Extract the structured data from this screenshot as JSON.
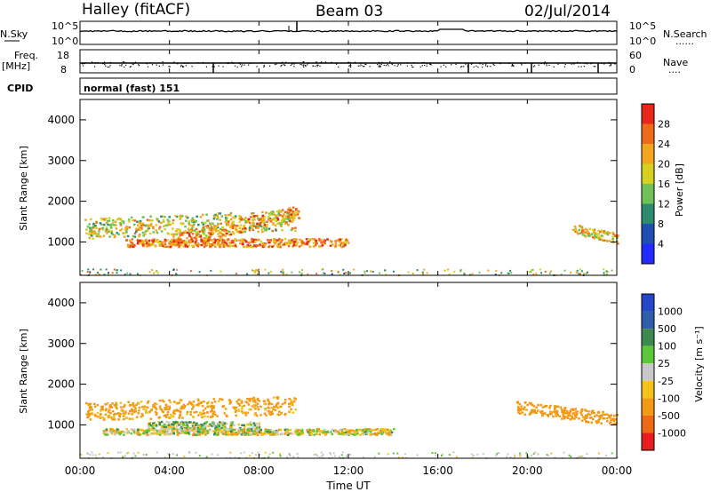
{
  "header": {
    "station": "Halley (fitACF)",
    "beam": "Beam 03",
    "date": "02/Jul/2014"
  },
  "strip_labels": {
    "nsky": "N.Sky",
    "nsearch": "N.Search",
    "freq_line1": "Freq.",
    "freq_line2": "[MHz]",
    "nave": "Nave",
    "cpid": "CPID",
    "mode": "normal (fast) 151",
    "dots": "......",
    "nave_dots": "...."
  },
  "strip_ticks": {
    "noise_left_top": "10^5",
    "noise_left_bottom": "10^0",
    "noise_right_top": "10^5",
    "noise_right_bottom": "10^0",
    "freq_left_top": "18",
    "freq_left_bottom": "8",
    "nave_right_top": "60",
    "nave_right_bottom": "0"
  },
  "axes": {
    "ylabel": "Slant Range [km]",
    "xlabel": "Time UT"
  },
  "colorbars": {
    "power": {
      "label": "Power [dB]",
      "ticks": [
        "4",
        "8",
        "12",
        "16",
        "20",
        "24",
        "28"
      ],
      "colors": [
        "#1f2bff",
        "#1f4fb0",
        "#2e8a6e",
        "#6fc25a",
        "#d6d021",
        "#f2a51f",
        "#ee6a1b",
        "#e8261a"
      ]
    },
    "velocity": {
      "label": "Velocity [m s⁻¹]",
      "ticks": [
        "1000",
        "500",
        "100",
        "25",
        "-25",
        "-100",
        "-500",
        "-1000"
      ],
      "colors": [
        "#2646c8",
        "#2e5fa8",
        "#3c8a50",
        "#5dc63a",
        "#c8c8c8",
        "#f5c21a",
        "#f39a14",
        "#ec6a14",
        "#e81e1e"
      ]
    }
  },
  "chart_data": [
    {
      "type": "heatmap",
      "title": "Power [dB]",
      "xlabel": "Time UT",
      "ylabel": "Slant Range [km]",
      "x_ticks": [
        "00:00",
        "04:00",
        "08:00",
        "12:00",
        "16:00",
        "20:00",
        "00:00"
      ],
      "y_ticks": [
        1000,
        2000,
        3000,
        4000
      ],
      "xlim_hours": [
        0,
        24
      ],
      "ylim_km": [
        180,
        4500
      ],
      "scatter_regions": [
        {
          "t0": 0.2,
          "t1": 9.6,
          "r_center_start": 1350,
          "r_center_end": 1550,
          "width_km": 500,
          "value_db": 18
        },
        {
          "t0": 4.0,
          "t1": 9.8,
          "r_center_start": 1050,
          "r_center_end": 1750,
          "width_km": 350,
          "value_db": 22
        },
        {
          "t0": 2.0,
          "t1": 12.0,
          "r_center_start": 1000,
          "r_center_end": 1000,
          "width_km": 200,
          "value_db": 24
        },
        {
          "t0": 22.0,
          "t1": 24.0,
          "r_center_start": 1350,
          "r_center_end": 1100,
          "width_km": 250,
          "value_db": 20
        }
      ]
    },
    {
      "type": "heatmap",
      "title": "Velocity [m s⁻¹]",
      "xlabel": "Time UT",
      "ylabel": "Slant Range [km]",
      "x_ticks": [
        "00:00",
        "04:00",
        "08:00",
        "12:00",
        "16:00",
        "20:00",
        "00:00"
      ],
      "y_ticks": [
        1000,
        2000,
        3000,
        4000
      ],
      "xlim_hours": [
        0,
        24
      ],
      "ylim_km": [
        180,
        4500
      ],
      "scatter_regions": [
        {
          "t0": 0.2,
          "t1": 9.6,
          "r_center_start": 1350,
          "r_center_end": 1500,
          "width_km": 450,
          "value_ms": -200
        },
        {
          "t0": 3.0,
          "t1": 8.0,
          "r_center_start": 1000,
          "r_center_end": 1000,
          "width_km": 200,
          "value_ms": 50
        },
        {
          "t0": 1.0,
          "t1": 14.0,
          "r_center_start": 850,
          "r_center_end": 850,
          "width_km": 150,
          "value_ms": -20
        },
        {
          "t0": 19.5,
          "t1": 24.0,
          "r_center_start": 1450,
          "r_center_end": 1150,
          "width_km": 300,
          "value_ms": -300
        }
      ]
    }
  ]
}
